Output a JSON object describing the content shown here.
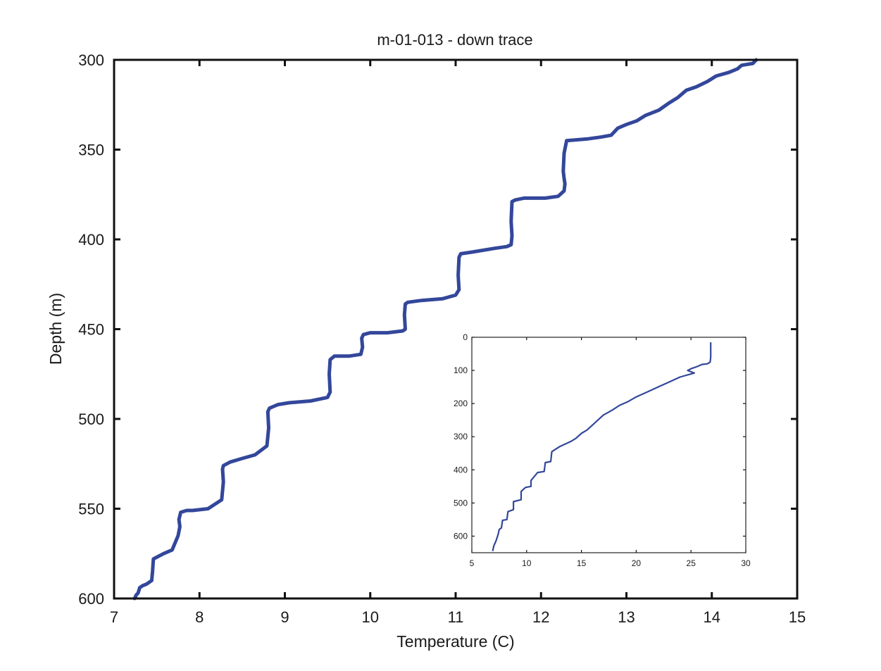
{
  "chart_data": [
    {
      "type": "line",
      "title": "m-01-013 - down trace",
      "xlabel": "Temperature (C)",
      "ylabel": "Depth (m)",
      "xlim": [
        7,
        15
      ],
      "ylim": [
        300,
        600
      ],
      "y_inverted": true,
      "x_ticks": [
        7,
        8,
        9,
        10,
        11,
        12,
        13,
        14,
        15
      ],
      "y_ticks": [
        300,
        350,
        400,
        450,
        500,
        550,
        600
      ],
      "grid": false,
      "line_color": "#33479a",
      "series": [
        {
          "x": [
            14.52,
            14.48,
            14.35,
            14.3,
            14.2,
            14.05,
            13.95,
            13.82,
            13.7,
            13.6,
            13.5,
            13.38,
            13.22,
            13.12,
            13.0,
            12.9,
            12.82,
            12.7,
            12.55,
            12.3,
            12.27,
            12.26,
            12.27,
            12.28,
            12.27,
            12.2,
            12.05,
            11.8,
            11.7,
            11.66,
            11.65,
            11.66,
            11.65,
            11.6,
            11.45,
            11.2,
            11.06,
            11.04,
            11.03,
            11.04,
            11.0,
            10.85,
            10.6,
            10.44,
            10.41,
            10.4,
            10.41,
            10.38,
            10.2,
            10.0,
            9.92,
            9.9,
            9.91,
            9.89,
            9.75,
            9.58,
            9.53,
            9.52,
            9.53,
            9.5,
            9.3,
            9.05,
            8.92,
            8.82,
            8.8,
            8.81,
            8.79,
            8.65,
            8.5,
            8.36,
            8.28,
            8.27,
            8.28,
            8.26,
            8.1,
            7.92,
            7.85,
            7.78,
            7.76,
            7.77,
            7.75,
            7.68,
            7.58,
            7.5,
            7.46,
            7.45,
            7.44,
            7.38,
            7.33,
            7.3,
            7.28,
            7.26,
            7.24
          ],
          "y": [
            300,
            302,
            303,
            305,
            307,
            309,
            312,
            315,
            317,
            321,
            324,
            328,
            331,
            334,
            336,
            338,
            342,
            343,
            344,
            345,
            352,
            362,
            366,
            369,
            373,
            376,
            377,
            377,
            378,
            379,
            390,
            398,
            403,
            404,
            405,
            407,
            408,
            410,
            420,
            428,
            431,
            433,
            434,
            435,
            436,
            442,
            450,
            451,
            452,
            452,
            453,
            455,
            460,
            464,
            465,
            465,
            467,
            475,
            485,
            488,
            490,
            491,
            492,
            494,
            496,
            505,
            515,
            520,
            522,
            524,
            526,
            528,
            535,
            545,
            550,
            551,
            551,
            552,
            556,
            560,
            565,
            573,
            575,
            577,
            578,
            585,
            590,
            592,
            593,
            594,
            597,
            598,
            600
          ]
        }
      ]
    },
    {
      "type": "line",
      "title": "",
      "xlabel": "",
      "ylabel": "",
      "xlim": [
        5,
        30
      ],
      "ylim": [
        0,
        650
      ],
      "y_inverted": true,
      "x_ticks": [
        5,
        10,
        15,
        20,
        25,
        30
      ],
      "y_ticks": [
        0,
        100,
        200,
        300,
        400,
        500,
        600
      ],
      "grid": false,
      "line_color": "#33479a",
      "series": [
        {
          "x": [
            26.8,
            26.8,
            26.75,
            26.5,
            26.0,
            25.6,
            25.0,
            24.7,
            25.3,
            24.0,
            23.0,
            22.0,
            21.0,
            20.0,
            19.2,
            18.5,
            17.8,
            17.0,
            16.5,
            16.0,
            15.5,
            15.0,
            14.5,
            14.0,
            13.0,
            12.3,
            12.2,
            11.7,
            11.6,
            11.0,
            10.4,
            10.4,
            9.9,
            9.5,
            9.5,
            8.8,
            8.8,
            8.3,
            8.2,
            7.8,
            7.7,
            7.5,
            7.4,
            7.3,
            7.2,
            7.0,
            6.9
          ],
          "y": [
            15,
            60,
            75,
            80,
            82,
            88,
            95,
            100,
            108,
            120,
            135,
            150,
            165,
            180,
            195,
            205,
            220,
            235,
            250,
            265,
            280,
            290,
            305,
            315,
            330,
            345,
            375,
            378,
            405,
            408,
            432,
            450,
            453,
            465,
            490,
            496,
            520,
            526,
            550,
            552,
            575,
            580,
            595,
            605,
            615,
            630,
            645
          ]
        }
      ]
    }
  ]
}
